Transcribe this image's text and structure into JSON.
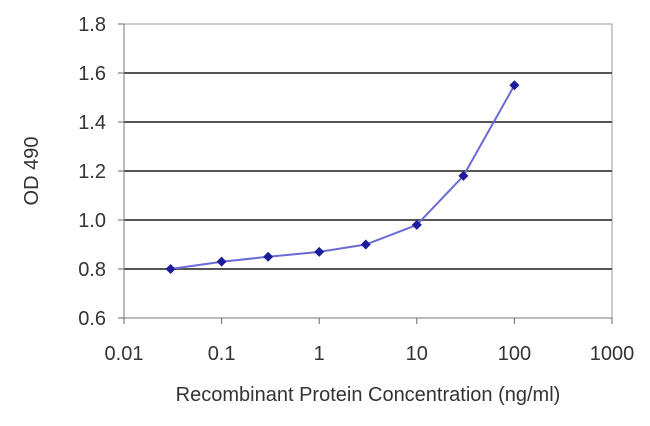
{
  "chart_data": {
    "type": "line",
    "xlabel": "Recombinant Protein Concentration (ng/ml)",
    "ylabel": "OD 490",
    "xscale": "log",
    "xlim": [
      0.01,
      1000
    ],
    "ylim": [
      0.6,
      1.8
    ],
    "x_ticks": [
      "0.01",
      "0.1",
      "1",
      "10",
      "100",
      "1000"
    ],
    "y_ticks": [
      "0.6",
      "0.8",
      "1.0",
      "1.2",
      "1.4",
      "1.6",
      "1.8"
    ],
    "grid": "horizontal",
    "legend": "none",
    "series": [
      {
        "x": [
          0.03,
          0.1,
          0.3,
          1,
          3,
          10,
          30,
          100
        ],
        "y": [
          0.8,
          0.83,
          0.85,
          0.87,
          0.9,
          0.98,
          1.18,
          1.55
        ],
        "color": "#6a6ad6",
        "marker_color": "#1c1c9c"
      }
    ]
  }
}
